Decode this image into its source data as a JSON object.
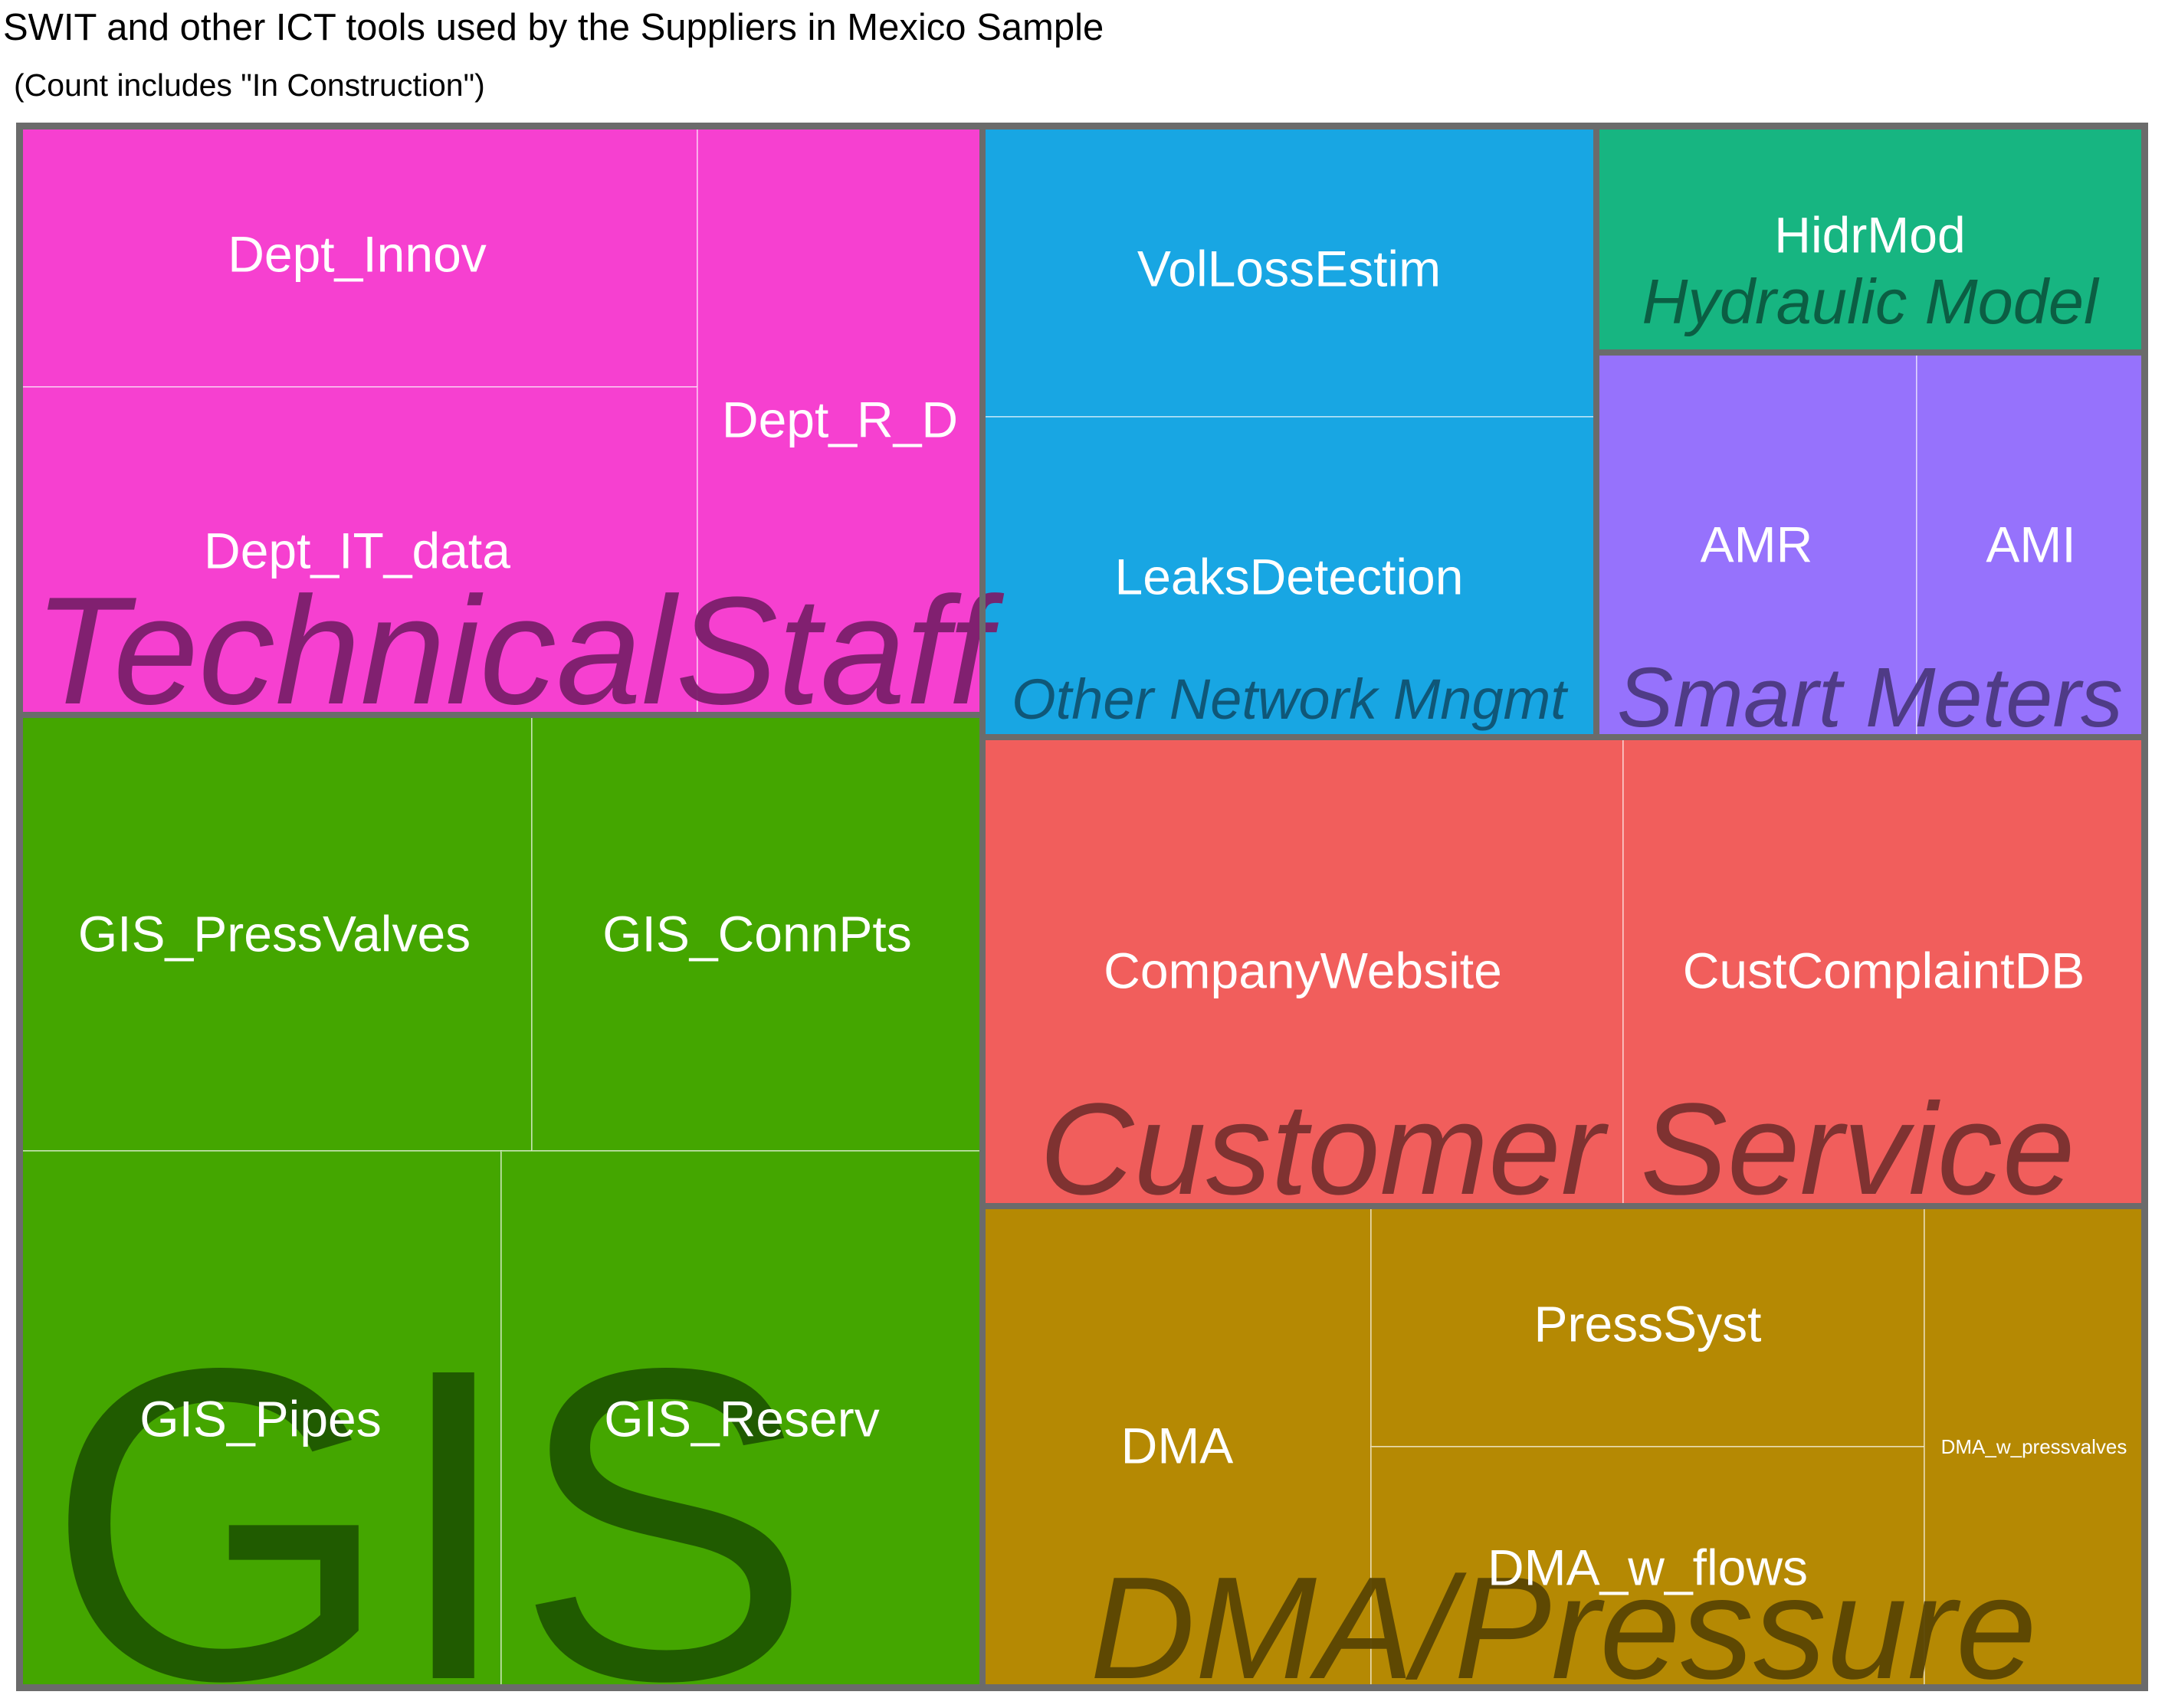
{
  "chart_data": {
    "type": "treemap",
    "title": "SWIT and other ICT tools used by the Suppliers in Mexico Sample",
    "subtitle": "(Count includes \"In Construction\")",
    "groups": [
      {
        "name": "TechnicalStaff",
        "color": "#F640D0",
        "label_color": "#7A1F6A",
        "items": [
          {
            "name": "Dept_Innov",
            "value": 3
          },
          {
            "name": "Dept_IT_data",
            "value": 3
          },
          {
            "name": "Dept_R_D",
            "value": 2
          }
        ]
      },
      {
        "name": "GIS",
        "color": "#44A600",
        "label_color": "#1F5600",
        "items": [
          {
            "name": "GIS_PressValves",
            "value": 4
          },
          {
            "name": "GIS_ConnPts",
            "value": 4
          },
          {
            "name": "GIS_Pipes",
            "value": 4
          },
          {
            "name": "GIS_Reserv",
            "value": 4
          }
        ]
      },
      {
        "name": "Other Network Mngmt",
        "color": "#18A6E3",
        "label_color": "#0F5272",
        "items": [
          {
            "name": "VolLossEstim",
            "value": 2
          },
          {
            "name": "LeaksDetection",
            "value": 2
          }
        ]
      },
      {
        "name": "Hydraulic Model",
        "color": "#17B581",
        "label_color": "#0B5A3F",
        "items": [
          {
            "name": "HidrMod",
            "value": 1
          }
        ]
      },
      {
        "name": "Smart Meters",
        "color": "#9672FC",
        "label_color": "#4B3880",
        "items": [
          {
            "name": "AMR",
            "value": 1
          },
          {
            "name": "AMI",
            "value": 1
          }
        ]
      },
      {
        "name": "Customer Service",
        "color": "#F15E5C",
        "label_color": "#782F2E",
        "items": [
          {
            "name": "CompanyWebsite",
            "value": 3
          },
          {
            "name": "CustComplaintDB",
            "value": 3
          }
        ]
      },
      {
        "name": "DMA/Pressure",
        "color": "#B58903",
        "label_color": "#5A4402",
        "items": [
          {
            "name": "DMA",
            "value": 3
          },
          {
            "name": "PressSyst",
            "value": 2
          },
          {
            "name": "DMA_w_flows",
            "value": 2
          },
          {
            "name": "DMA_w_pressvalves",
            "value": 1
          }
        ]
      }
    ]
  }
}
